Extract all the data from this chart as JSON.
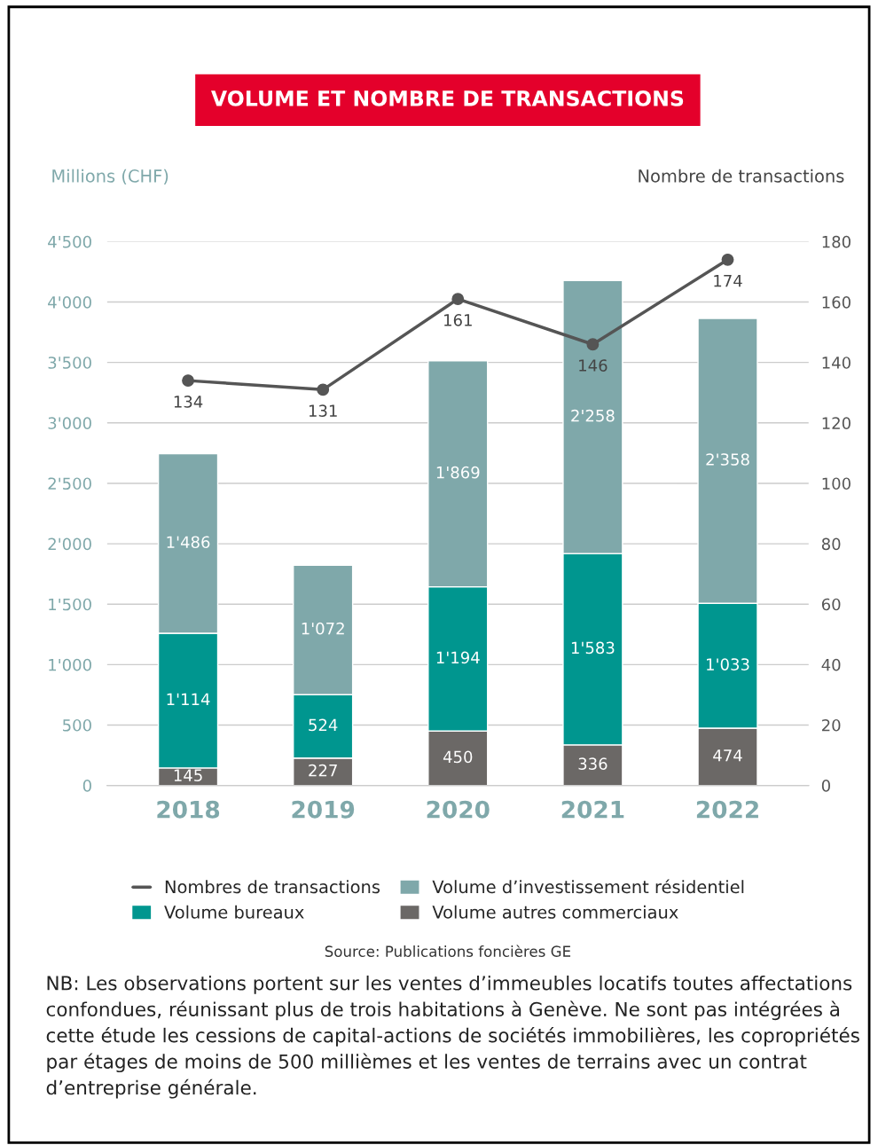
{
  "chart_data": {
    "type": "bar",
    "title": "VOLUME ET NOMBRE DE TRANSACTIONS",
    "ylabel": "Millions (CHF)",
    "y2label": "Nombre de transactions",
    "categories": [
      "2018",
      "2019",
      "2020",
      "2021",
      "2022"
    ],
    "stacked": true,
    "series": [
      {
        "name": "Volume autres commerciaux",
        "color": "#6b6866",
        "values": [
          145,
          227,
          450,
          336,
          474
        ],
        "value_labels": [
          "145",
          "227",
          "450",
          "336",
          "474"
        ]
      },
      {
        "name": "Volume bureaux",
        "color": "#00968f",
        "values": [
          1114,
          524,
          1194,
          1583,
          1033
        ],
        "value_labels": [
          "1'114",
          "524",
          "1'194",
          "1'583",
          "1'033"
        ]
      },
      {
        "name": "Volume d’investissement résidentiel",
        "color": "#7fa8aa",
        "values": [
          1486,
          1072,
          1869,
          2258,
          2358
        ],
        "value_labels": [
          "1'486",
          "1'072",
          "1'869",
          "2'258",
          "2'358"
        ]
      },
      {
        "name": "Nombres de transactions",
        "type": "line",
        "axis": "y2",
        "color": "#555555",
        "marker": "circle",
        "values": [
          134,
          131,
          161,
          146,
          174
        ],
        "value_labels": [
          "134",
          "131",
          "161",
          "146",
          "174"
        ]
      }
    ],
    "ylim": [
      0,
      4500
    ],
    "yticks": [
      0,
      500,
      {
        "value": 1000,
        "label": "1'000"
      },
      {
        "value": 1500,
        "label": "1'500"
      },
      {
        "value": 2000,
        "label": "2'000"
      },
      {
        "value": 2500,
        "label": "2'500"
      },
      {
        "value": 3000,
        "label": "3'000"
      },
      {
        "value": 3500,
        "label": "3'500"
      },
      {
        "value": 4000,
        "label": "4'000"
      },
      {
        "value": 4500,
        "label": "4'500"
      }
    ],
    "y2lim": [
      0,
      180
    ],
    "y2ticks": [
      0,
      20,
      40,
      60,
      80,
      100,
      120,
      140,
      160,
      180
    ],
    "grid": "y",
    "legend": "bottom",
    "annotations": [
      "Source: Publications foncières GE",
      "NB: Les observations portent sur les ventes d’immeubles locatifs toutes affectations confondues, réunissant plus de trois habitations à Genève. Ne sont pas intégrées à cette étude les cessions de capital-actions de sociétés immobilières, les copropriétés par étages de moins de 500 millièmes et les ventes de terrains avec un contrat d’entreprise générale."
    ]
  }
}
